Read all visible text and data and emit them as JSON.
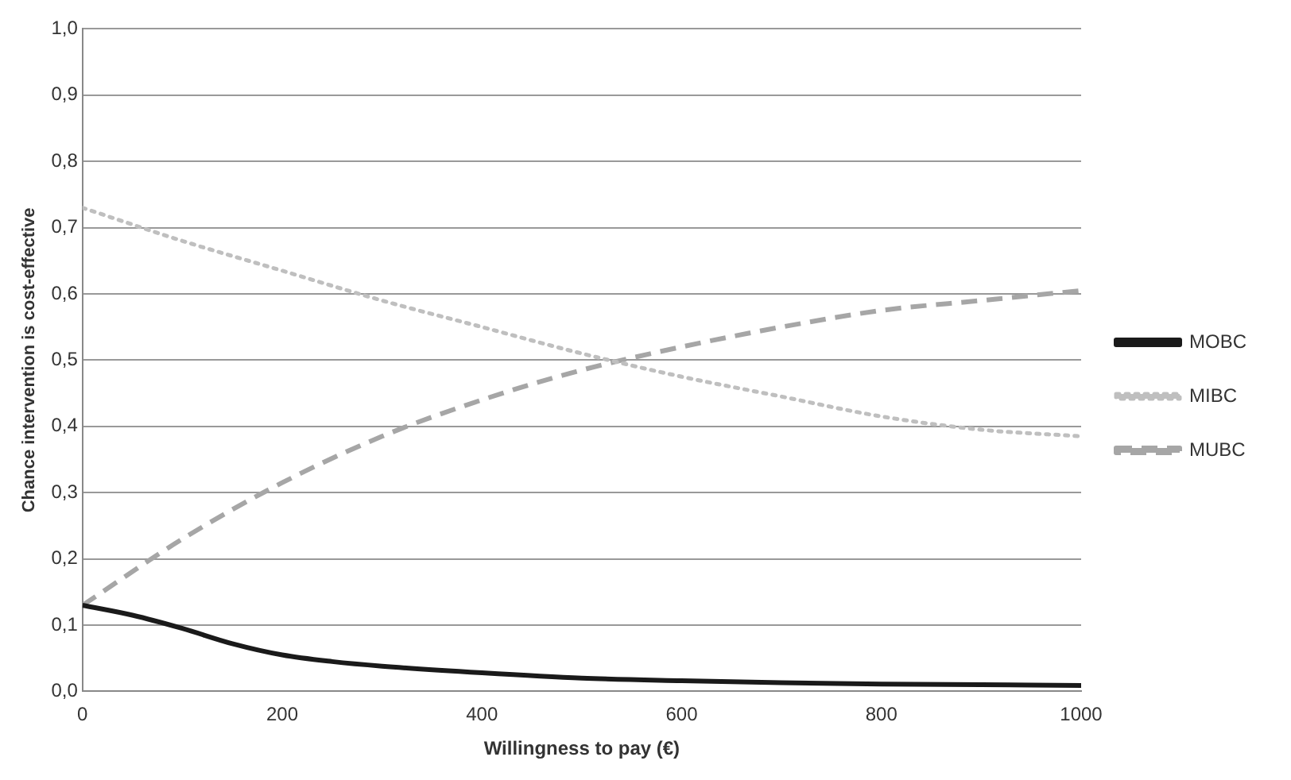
{
  "chart_data": {
    "type": "line",
    "xlabel": "Willingness to pay (€)",
    "ylabel": "Chance intervention is cost-effective",
    "xlim": [
      0,
      1000
    ],
    "xticks": [
      0,
      200,
      400,
      600,
      800,
      1000
    ],
    "ylim": [
      0,
      1
    ],
    "yticks": [
      {
        "value": 0,
        "label": "0,0"
      },
      {
        "value": 0.1,
        "label": "0,1"
      },
      {
        "value": 0.2,
        "label": "0,2"
      },
      {
        "value": 0.3,
        "label": "0,3"
      },
      {
        "value": 0.4,
        "label": "0,4"
      },
      {
        "value": 0.5,
        "label": "0,5"
      },
      {
        "value": 0.6,
        "label": "0,6"
      },
      {
        "value": 0.7,
        "label": "0,7"
      },
      {
        "value": 0.8,
        "label": "0,8"
      },
      {
        "value": 0.9,
        "label": "0,9"
      },
      {
        "value": 1,
        "label": "1,0"
      }
    ],
    "grid": "y",
    "legend": "right",
    "marker": "none",
    "series": [
      {
        "name": "MOBC",
        "color": "#1a1a1a",
        "line_style": "solid",
        "x": [
          0,
          50,
          100,
          150,
          200,
          250,
          300,
          400,
          500,
          600,
          700,
          800,
          900,
          1000
        ],
        "values": [
          0.13,
          0.115,
          0.095,
          0.072,
          0.055,
          0.045,
          0.038,
          0.028,
          0.02,
          0.016,
          0.013,
          0.011,
          0.01,
          0.009
        ]
      },
      {
        "name": "MIBC",
        "color": "#bfbfbf",
        "line_style": "dotted",
        "x": [
          0,
          100,
          200,
          300,
          400,
          500,
          600,
          700,
          800,
          900,
          1000
        ],
        "values": [
          0.73,
          0.68,
          0.635,
          0.59,
          0.55,
          0.51,
          0.475,
          0.445,
          0.415,
          0.395,
          0.385
        ]
      },
      {
        "name": "MUBC",
        "color": "#a6a6a6",
        "line_style": "dashed",
        "x": [
          0,
          100,
          200,
          300,
          400,
          500,
          600,
          700,
          800,
          900,
          1000
        ],
        "values": [
          0.13,
          0.23,
          0.315,
          0.385,
          0.44,
          0.485,
          0.52,
          0.55,
          0.575,
          0.59,
          0.605
        ]
      }
    ]
  }
}
